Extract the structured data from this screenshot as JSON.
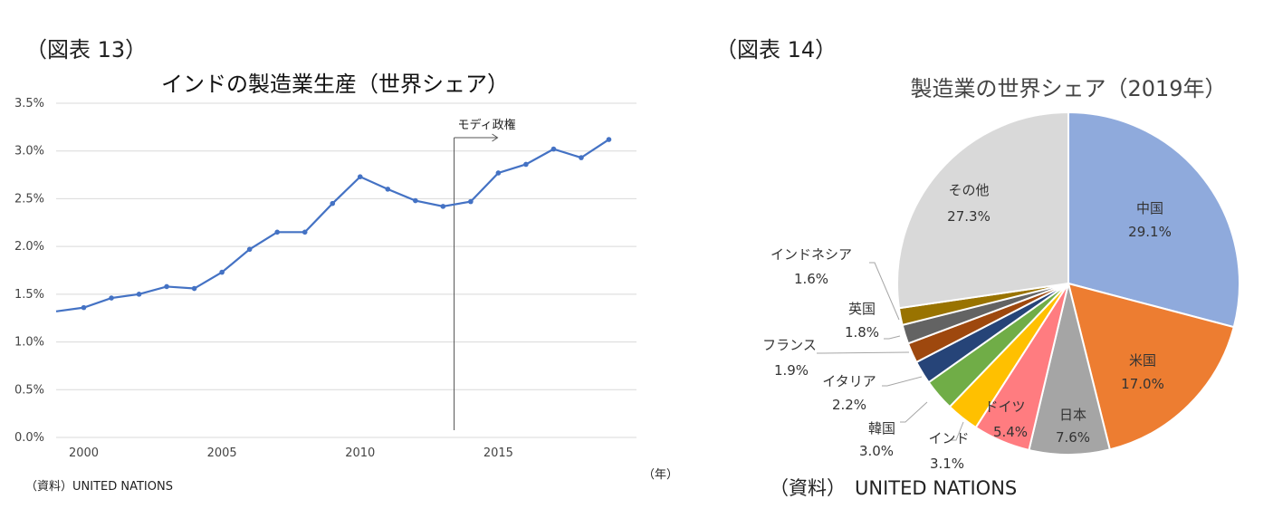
{
  "left_figure": {
    "label": "（図表 13）",
    "source": "（資料）UNITED NATIONS",
    "x_unit": "（年）"
  },
  "right_figure": {
    "label": "（図表 14）",
    "source_prefix": "（資料）",
    "source_name": "UNITED NATIONS"
  },
  "chart_data": [
    {
      "type": "line",
      "title": "インドの製造業生産（世界シェア）",
      "xlabel": "",
      "ylabel": "",
      "x": [
        1999,
        2000,
        2001,
        2002,
        2003,
        2004,
        2005,
        2006,
        2007,
        2008,
        2009,
        2010,
        2011,
        2012,
        2013,
        2014,
        2015,
        2016,
        2017,
        2018,
        2019
      ],
      "series": [
        {
          "values": [
            1.32,
            1.36,
            1.46,
            1.5,
            1.58,
            1.56,
            1.73,
            1.97,
            2.15,
            2.15,
            2.45,
            2.73,
            2.6,
            2.48,
            2.42,
            2.47,
            2.77,
            2.86,
            3.02,
            2.93,
            3.12
          ],
          "color": "#4472C4"
        }
      ],
      "xlim": [
        1999,
        2020
      ],
      "ylim": [
        0,
        3.5
      ],
      "x_ticks": [
        "2000",
        "2005",
        "2010",
        "2015"
      ],
      "x_tick_values": [
        2000,
        2005,
        2010,
        2015
      ],
      "y_ticks": [
        "0.0%",
        "0.5%",
        "1.0%",
        "1.5%",
        "2.0%",
        "2.5%",
        "3.0%",
        "3.5%"
      ],
      "y_tick_values": [
        0,
        0.5,
        1.0,
        1.5,
        2.0,
        2.5,
        3.0,
        3.5
      ],
      "grid": true,
      "annotation": {
        "text": "モディ政権",
        "x": 2013.4
      }
    },
    {
      "type": "pie",
      "title": "製造業の世界シェア（2019年）",
      "slices": [
        {
          "name": "中国",
          "value": 29.1,
          "label": "29.1%",
          "color": "#8FAADC"
        },
        {
          "name": "米国",
          "value": 17.0,
          "label": "17.0%",
          "color": "#ED7D31"
        },
        {
          "name": "日本",
          "value": 7.6,
          "label": "7.6%",
          "color": "#A5A5A5"
        },
        {
          "name": "ドイツ",
          "value": 5.4,
          "label": "5.4%",
          "color": "#FF7C80"
        },
        {
          "name": "インド",
          "value": 3.1,
          "label": "3.1%",
          "color": "#FFC000"
        },
        {
          "name": "韓国",
          "value": 3.0,
          "label": "3.0%",
          "color": "#70AD47"
        },
        {
          "name": "イタリア",
          "value": 2.2,
          "label": "2.2%",
          "color": "#264478"
        },
        {
          "name": "フランス",
          "value": 1.9,
          "label": "1.9%",
          "color": "#9E480E"
        },
        {
          "name": "英国",
          "value": 1.8,
          "label": "1.8%",
          "color": "#636363"
        },
        {
          "name": "インドネシア",
          "value": 1.6,
          "label": "1.6%",
          "color": "#997300"
        },
        {
          "name": "その他",
          "value": 27.3,
          "label": "27.3%",
          "color": "#D9D9D9"
        }
      ]
    }
  ]
}
